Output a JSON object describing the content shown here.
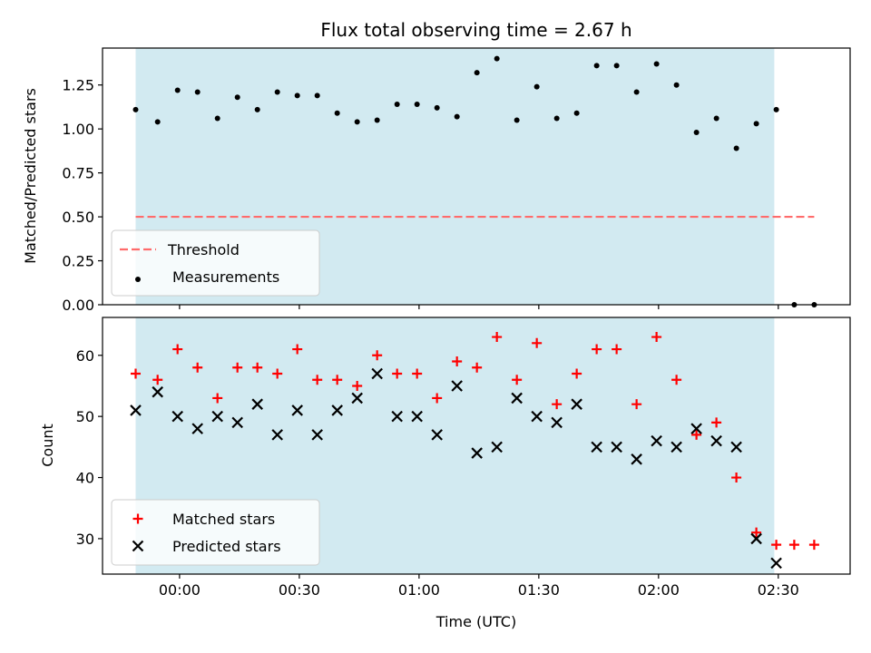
{
  "chart_data": [
    {
      "type": "scatter",
      "title": "Flux total observing time = 2.67 h",
      "ylabel": "Matched/Predicted stars",
      "xlabel": "",
      "x_ticks": [
        "00:00",
        "00:30",
        "01:00",
        "01:30",
        "02:00",
        "02:30"
      ],
      "x_tick_minutes": [
        0,
        30,
        60,
        90,
        120,
        150
      ],
      "xlim_minutes": [
        -19.3,
        168
      ],
      "ylim": [
        0,
        1.46
      ],
      "y_ticks": [
        0.0,
        0.25,
        0.5,
        0.75,
        1.0,
        1.25
      ],
      "y_tick_labels": [
        "0.00",
        "0.25",
        "0.50",
        "0.75",
        "1.00",
        "1.25"
      ],
      "shaded_interval_minutes": [
        -11,
        149
      ],
      "shade_color": "#add8e6",
      "legend_position": "lower-left",
      "threshold": {
        "name": "Threshold",
        "y": 0.5,
        "x_range_minutes": [
          -11,
          159
        ],
        "color": "#ff6b6b"
      },
      "series": [
        {
          "name": "Measurements",
          "marker": "dot",
          "color": "#000000",
          "x_minutes": [
            -11,
            -5.5,
            -0.5,
            4.5,
            9.5,
            14.5,
            19.5,
            24.5,
            29.5,
            34.5,
            39.5,
            44.5,
            49.5,
            54.5,
            59.5,
            64.5,
            69.5,
            74.5,
            79.5,
            84.5,
            89.5,
            94.5,
            99.5,
            104.5,
            109.5,
            114.5,
            119.5,
            124.5,
            129.5,
            134.5,
            139.5,
            144.5,
            149.5,
            154,
            159
          ],
          "values": [
            1.11,
            1.04,
            1.22,
            1.21,
            1.06,
            1.18,
            1.11,
            1.21,
            1.19,
            1.19,
            1.09,
            1.04,
            1.05,
            1.14,
            1.14,
            1.12,
            1.07,
            1.32,
            1.4,
            1.05,
            1.24,
            1.06,
            1.09,
            1.36,
            1.36,
            1.21,
            1.37,
            1.25,
            0.98,
            1.06,
            0.89,
            1.03,
            1.11,
            0.0,
            0.0
          ]
        }
      ]
    },
    {
      "type": "scatter",
      "title": "",
      "ylabel": "Count",
      "xlabel": "Time (UTC)",
      "x_ticks": [
        "00:00",
        "00:30",
        "01:00",
        "01:30",
        "02:00",
        "02:30"
      ],
      "x_tick_minutes": [
        0,
        30,
        60,
        90,
        120,
        150
      ],
      "xlim_minutes": [
        -19.3,
        168
      ],
      "ylim": [
        24.2,
        66.2
      ],
      "y_ticks": [
        30,
        40,
        50,
        60
      ],
      "y_tick_labels": [
        "30",
        "40",
        "50",
        "60"
      ],
      "shaded_interval_minutes": [
        -11,
        149
      ],
      "shade_color": "#add8e6",
      "legend_position": "lower-left",
      "series": [
        {
          "name": "Matched stars",
          "marker": "plus",
          "color": "#ff0000",
          "x_minutes": [
            -11,
            -5.5,
            -0.5,
            4.5,
            9.5,
            14.5,
            19.5,
            24.5,
            29.5,
            34.5,
            39.5,
            44.5,
            49.5,
            54.5,
            59.5,
            64.5,
            69.5,
            74.5,
            79.5,
            84.5,
            89.5,
            94.5,
            99.5,
            104.5,
            109.5,
            114.5,
            119.5,
            124.5,
            129.5,
            134.5,
            139.5,
            144.5,
            149.5,
            154,
            159
          ],
          "values": [
            57,
            56,
            61,
            58,
            53,
            58,
            58,
            57,
            61,
            56,
            56,
            55,
            60,
            57,
            57,
            53,
            59,
            58,
            63,
            56,
            62,
            52,
            57,
            61,
            61,
            52,
            63,
            56,
            47,
            49,
            40,
            31,
            29,
            29,
            29
          ]
        },
        {
          "name": "Predicted stars",
          "marker": "x",
          "color": "#000000",
          "x_minutes": [
            -11,
            -5.5,
            -0.5,
            4.5,
            9.5,
            14.5,
            19.5,
            24.5,
            29.5,
            34.5,
            39.5,
            44.5,
            49.5,
            54.5,
            59.5,
            64.5,
            69.5,
            74.5,
            79.5,
            84.5,
            89.5,
            94.5,
            99.5,
            104.5,
            109.5,
            114.5,
            119.5,
            124.5,
            129.5,
            134.5,
            139.5,
            144.5,
            149.5
          ],
          "values": [
            51,
            54,
            50,
            48,
            50,
            49,
            52,
            47,
            51,
            47,
            51,
            53,
            57,
            50,
            50,
            47,
            55,
            44,
            45,
            53,
            50,
            49,
            52,
            45,
            45,
            43,
            46,
            45,
            48,
            46,
            45,
            30,
            26
          ]
        }
      ]
    }
  ]
}
